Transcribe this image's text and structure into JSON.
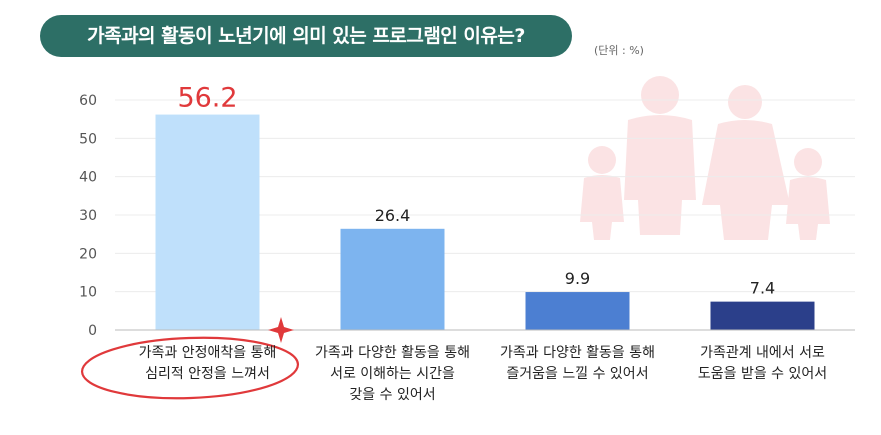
{
  "title": "가족과의 활동이 노년기에 의미 있는 프로그램인 이유는?",
  "unit": "(단위 : %)",
  "chart_data": {
    "type": "bar",
    "title": "가족과의 활동이 노년기에 의미 있는 프로그램인 이유는?",
    "xlabel": "",
    "ylabel": "",
    "ylim": [
      0,
      60
    ],
    "y_ticks": [
      0,
      10,
      20,
      30,
      40,
      50,
      60
    ],
    "grid": true,
    "categories": [
      "가족과 안정애착을 통해\n심리적 안정을 느껴서",
      "가족과 다양한 활동을 통해\n서로 이해하는 시간을\n갖을 수 있어서",
      "가족과 다양한 활동을 통해\n즐거움을 느낄 수 있어서",
      "가족관계 내에서 서로\n도움을 받을 수 있어서"
    ],
    "values": [
      56.2,
      26.4,
      9.9,
      7.4
    ],
    "value_labels": [
      "56.2",
      "26.4",
      "9.9",
      "7.4"
    ],
    "colors": [
      "#bfe0fb",
      "#7db4ef",
      "#4c7fd2",
      "#2b3f8a"
    ],
    "highlight_color": "#e0393b"
  }
}
